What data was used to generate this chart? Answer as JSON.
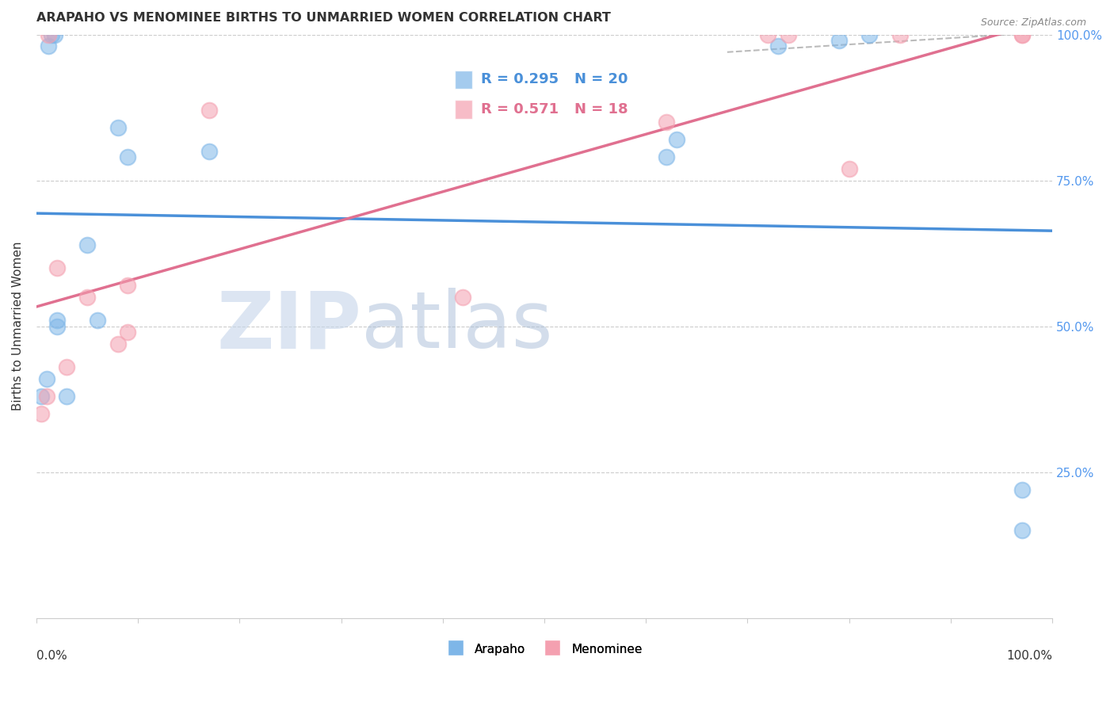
{
  "title": "ARAPAHO VS MENOMINEE BIRTHS TO UNMARRIED WOMEN CORRELATION CHART",
  "source": "Source: ZipAtlas.com",
  "ylabel": "Births to Unmarried Women",
  "xlim": [
    0.0,
    1.0
  ],
  "ylim": [
    0.0,
    1.0
  ],
  "ytick_values": [
    0.25,
    0.5,
    0.75,
    1.0
  ],
  "arapaho_color": "#7EB6E8",
  "menominee_color": "#F4A0B0",
  "regression_blue_color": "#4A90D9",
  "regression_pink_color": "#E07090",
  "watermark_zip_color": "#C8D8F0",
  "watermark_atlas_color": "#A0B8D8",
  "R_arapaho": 0.295,
  "N_arapaho": 20,
  "R_menominee": 0.571,
  "N_menominee": 18,
  "arapaho_x": [
    0.005,
    0.01,
    0.012,
    0.015,
    0.018,
    0.02,
    0.02,
    0.03,
    0.05,
    0.06,
    0.08,
    0.09,
    0.17,
    0.62,
    0.63,
    0.73,
    0.79,
    0.82,
    0.97,
    0.97
  ],
  "arapaho_y": [
    0.38,
    0.41,
    0.98,
    1.0,
    1.0,
    0.5,
    0.51,
    0.38,
    0.64,
    0.51,
    0.84,
    0.79,
    0.8,
    0.79,
    0.82,
    0.98,
    0.99,
    1.0,
    0.15,
    0.22
  ],
  "menominee_x": [
    0.005,
    0.01,
    0.012,
    0.02,
    0.03,
    0.05,
    0.08,
    0.09,
    0.09,
    0.17,
    0.42,
    0.62,
    0.72,
    0.74,
    0.8,
    0.85,
    0.97,
    0.97
  ],
  "menominee_y": [
    0.35,
    0.38,
    1.0,
    0.6,
    0.43,
    0.55,
    0.47,
    0.49,
    0.57,
    0.87,
    0.55,
    0.85,
    1.0,
    1.0,
    0.77,
    1.0,
    1.0,
    1.0
  ],
  "legend_arapaho_label": "Arapaho",
  "legend_menominee_label": "Menominee",
  "background_color": "#FFFFFF",
  "grid_color": "#CCCCCC",
  "title_color": "#333333",
  "right_axis_color": "#5599EE",
  "legend_box_color": "#CCCCCC"
}
